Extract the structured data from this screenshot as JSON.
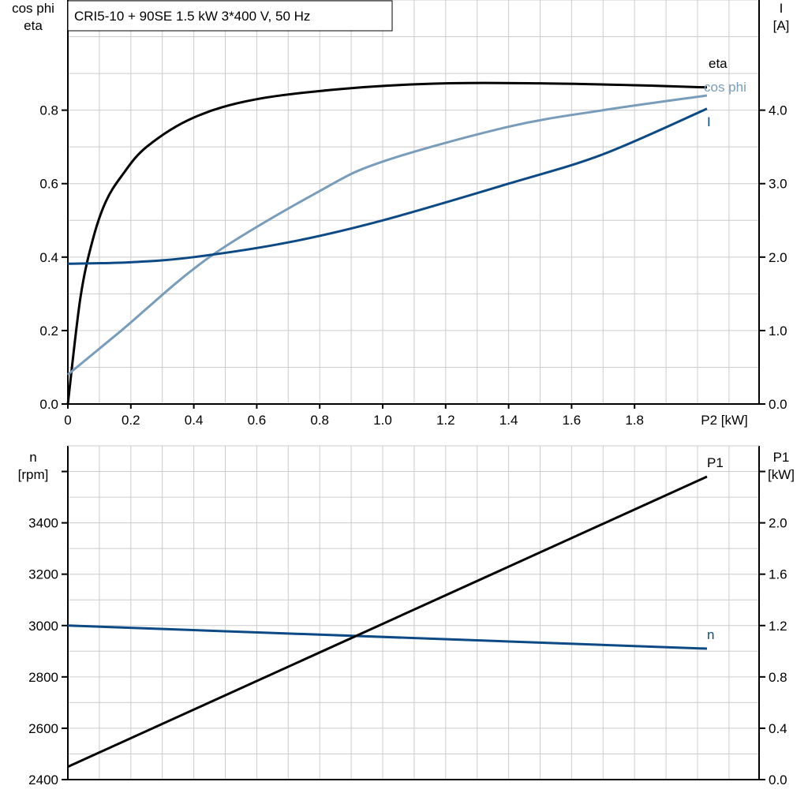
{
  "colors": {
    "eta": "#000000",
    "cos_phi": "#7a9cbb",
    "I": "#0d4a85",
    "n": "#0d4a85",
    "P1": "#000000",
    "grid": "#cccccc"
  },
  "chart_data": [
    {
      "type": "line",
      "title": "CRI5-10 + 90SE   1.5 kW   3*400 V, 50 Hz",
      "xlabel": "P2 [kW]",
      "xlim": [
        0,
        2.2
      ],
      "xticks": [
        "0",
        "0.2",
        "0.4",
        "0.6",
        "0.8",
        "1.0",
        "1.2",
        "1.4",
        "1.6",
        "1.8"
      ],
      "ylabel_left": [
        "cos phi",
        "eta"
      ],
      "ylim_left": [
        0,
        1.1
      ],
      "yticks_left": [
        "0.0",
        "0.2",
        "0.4",
        "0.6",
        "0.8"
      ],
      "ylabel_right": [
        "I",
        "[A]"
      ],
      "ylim_right": [
        0,
        5.5
      ],
      "yticks_right": [
        "0.0",
        "1.0",
        "2.0",
        "3.0",
        "4.0"
      ],
      "grid": true,
      "series": [
        {
          "name": "eta",
          "axis": "left",
          "x": [
            0,
            0.04,
            0.08,
            0.12,
            0.17,
            0.25,
            0.4,
            0.6,
            0.9,
            1.2,
            1.5,
            1.8,
            2.03
          ],
          "y": [
            0,
            0.29,
            0.45,
            0.55,
            0.62,
            0.7,
            0.78,
            0.83,
            0.86,
            0.873,
            0.873,
            0.868,
            0.862
          ]
        },
        {
          "name": "cos phi",
          "axis": "left",
          "x": [
            0,
            0.17,
            0.45,
            0.8,
            1.0,
            1.4,
            1.7,
            2.03
          ],
          "y": [
            0.08,
            0.2,
            0.4,
            0.58,
            0.66,
            0.755,
            0.8,
            0.84
          ]
        },
        {
          "name": "I",
          "axis": "right",
          "x": [
            0,
            0.2,
            0.4,
            0.7,
            1.0,
            1.4,
            1.7,
            2.03
          ],
          "y": [
            1.91,
            1.93,
            2.0,
            2.2,
            2.5,
            3.0,
            3.4,
            4.02
          ]
        }
      ]
    },
    {
      "type": "line",
      "xlim": [
        0,
        2.2
      ],
      "ylabel_left": [
        "n",
        "[rpm]"
      ],
      "ylim_left": [
        2400,
        3700
      ],
      "yticks_left": [
        "2400",
        "2600",
        "2800",
        "3000",
        "3200",
        "3400"
      ],
      "ylabel_right": [
        "P1",
        "[kW]"
      ],
      "ylim_right": [
        0,
        2.6
      ],
      "yticks_right": [
        "0.0",
        "0.4",
        "0.8",
        "1.2",
        "1.6",
        "2.0"
      ],
      "grid": true,
      "series": [
        {
          "name": "n",
          "axis": "left",
          "x": [
            0,
            2.03
          ],
          "y": [
            3000,
            2910
          ]
        },
        {
          "name": "P1",
          "axis": "right",
          "x": [
            0,
            2.03
          ],
          "y": [
            0.1,
            2.36
          ]
        }
      ]
    }
  ]
}
